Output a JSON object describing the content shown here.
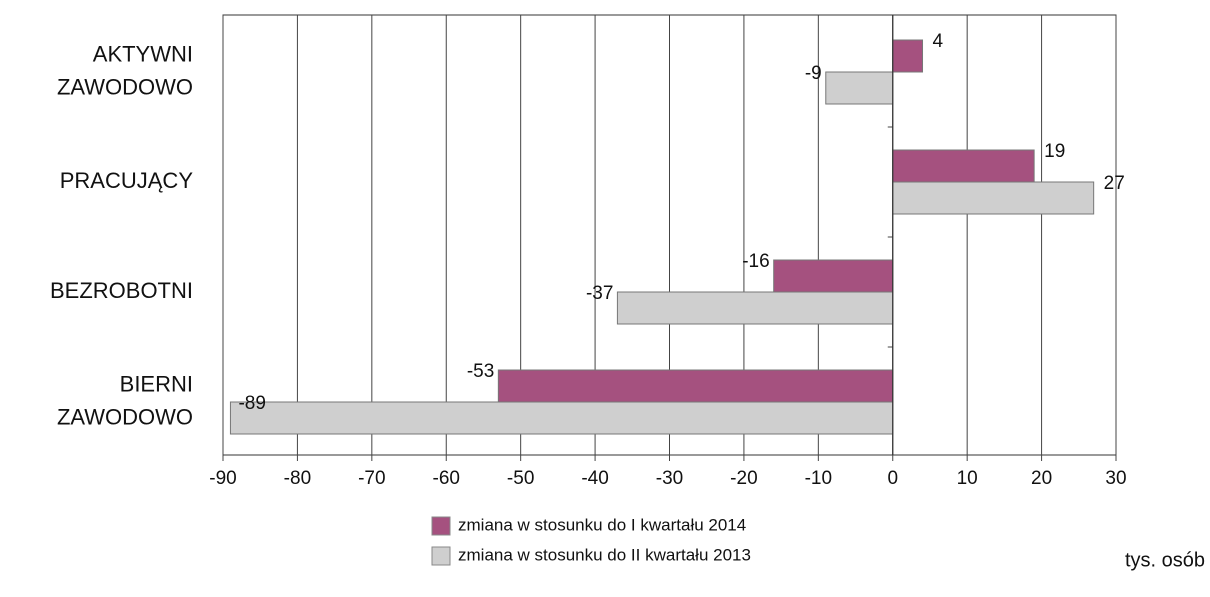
{
  "chart_data": {
    "type": "bar",
    "orientation": "horizontal",
    "categories": [
      [
        "AKTYWNI",
        "ZAWODOWO"
      ],
      [
        "PRACUJĄCY"
      ],
      [
        "BEZROBOTNI"
      ],
      [
        "BIERNI",
        "ZAWODOWO"
      ]
    ],
    "series": [
      {
        "name": "zmiana w stosunku do I kwartału 2014",
        "color": "#a5517f",
        "values": [
          4,
          19,
          -16,
          -53
        ]
      },
      {
        "name": "zmiana w stosunku do II kwartału 2013",
        "color": "#cfcfcf",
        "values": [
          -9,
          27,
          -37,
          -89
        ]
      }
    ],
    "xlim": [
      -90,
      30
    ],
    "xticks": [
      -90,
      -80,
      -70,
      -60,
      -50,
      -40,
      -30,
      -20,
      -10,
      0,
      10,
      20,
      30
    ],
    "x_axis_label": "tys. osób",
    "grid": true,
    "legend": "bottom"
  }
}
